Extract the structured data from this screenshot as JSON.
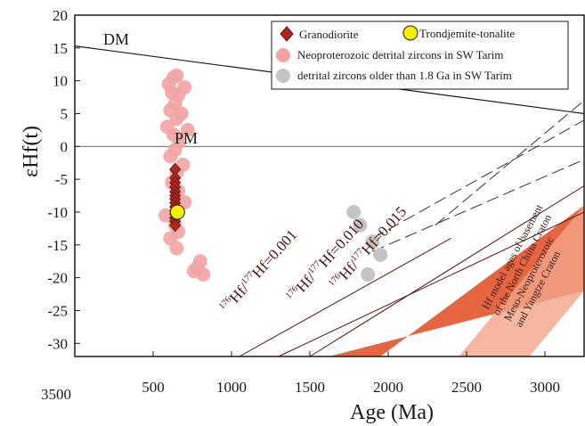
{
  "chart_data": {
    "type": "scatter",
    "xlabel": "Age (Ma)",
    "ylabel": "εHf(t)",
    "xlim": [
      0,
      3250
    ],
    "ylim": [
      -32,
      20
    ],
    "x_ticks": [
      500,
      1000,
      1500,
      2000,
      2500,
      3000
    ],
    "x_tick_labels": [
      "500",
      "1000",
      "1500",
      "2000",
      "2500",
      "3000"
    ],
    "extra_x_label": "3500",
    "y_ticks": [
      -30,
      -25,
      -20,
      -15,
      -10,
      -5,
      0,
      5,
      10,
      15,
      20
    ],
    "y_tick_labels": [
      "-30",
      "-25",
      "-20",
      "-15",
      "-10",
      "-5",
      "0",
      "5",
      "10",
      "15",
      "20"
    ],
    "grid": false,
    "legend_position": "top-right",
    "reference_lines": [
      {
        "label": "DM",
        "points": [
          [
            0,
            15.3
          ],
          [
            3250,
            5.0
          ]
        ]
      },
      {
        "label": "PM",
        "points": [
          [
            0,
            0
          ],
          [
            3250,
            0
          ]
        ]
      }
    ],
    "isotope_labels": [
      {
        "prefix": "176",
        "text": "Hf/",
        "prefix2": "177",
        "text2": "Hf=0.001"
      },
      {
        "prefix": "176",
        "text": "Hf/",
        "prefix2": "177",
        "text2": "Hf=0.010"
      },
      {
        "prefix": "176",
        "text": "Hf/",
        "prefix2": "177",
        "text2": "Hf=0.015"
      }
    ],
    "basement_label": [
      "Hf model ages of basement",
      "of the North China Craton",
      "Meso-Neoproterozoic",
      "and Yangtze Craton"
    ],
    "series": [
      {
        "name": "Granodiorite",
        "marker": "diamond",
        "color": "#b3261e",
        "x": [
          640,
          640,
          640,
          640,
          640,
          640,
          640,
          640,
          640,
          640,
          640,
          640,
          640,
          640
        ],
        "y": [
          -3.5,
          -4.8,
          -5.5,
          -6.2,
          -6.9,
          -7.5,
          -8.0,
          -8.6,
          -9.2,
          -9.8,
          -10.3,
          -10.9,
          -11.4,
          -12.0
        ]
      },
      {
        "name": "Trondjemite-tonalite",
        "marker": "circle",
        "color": "#f5f000",
        "x": [
          655
        ],
        "y": [
          -10.0
        ]
      },
      {
        "name": "Neoproterozoic detrital zircons in SW Tarim",
        "marker": "circle",
        "color": "#f2a4a4",
        "x": [
          630,
          650,
          600,
          700,
          620,
          660,
          640,
          610,
          680,
          650,
          590,
          720,
          630,
          670,
          640,
          610,
          690,
          650,
          620,
          660,
          700,
          580,
          640,
          660,
          610,
          650,
          780,
          820,
          760,
          800
        ],
        "y": [
          10.5,
          10.8,
          9.5,
          9.0,
          8.2,
          7.8,
          6.5,
          5.5,
          5.0,
          4.2,
          3.0,
          2.5,
          1.8,
          0.8,
          -0.5,
          -1.5,
          -2.8,
          -4.0,
          -5.5,
          -6.8,
          -8.5,
          -10.5,
          -12.0,
          -13.0,
          -14.0,
          -15.5,
          -18.5,
          -19.5,
          -19.0,
          -17.5
        ]
      },
      {
        "name": "detrital zircons older than 1.8 Ga in SW Tarim",
        "marker": "circle",
        "color": "#c4c4c4",
        "x": [
          1780,
          1820,
          1900,
          1950,
          1870
        ],
        "y": [
          -10.0,
          -12.0,
          -14.5,
          -16.5,
          -19.5
        ]
      }
    ]
  }
}
